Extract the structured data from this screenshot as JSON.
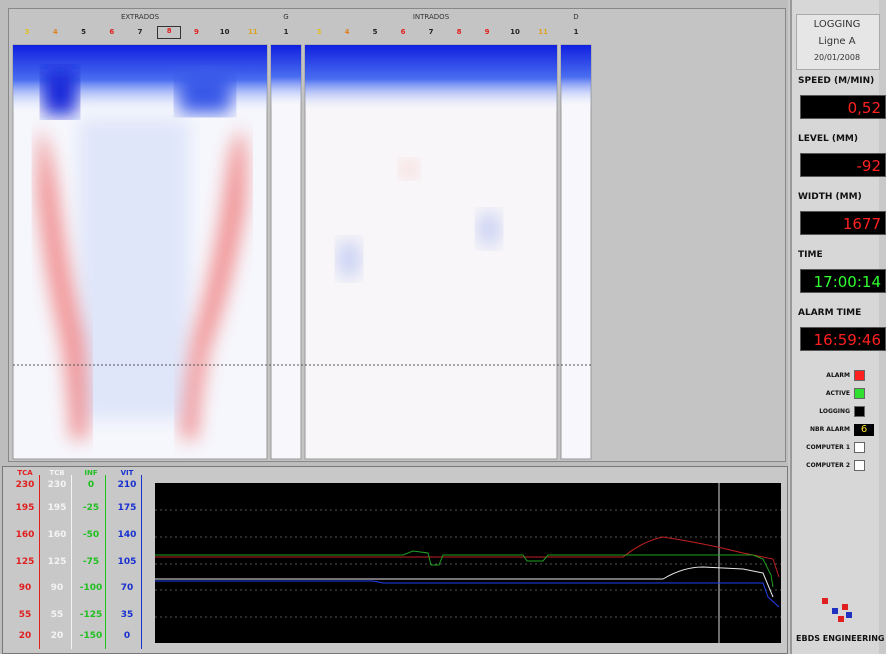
{
  "heatmap": {
    "sections": [
      {
        "title": "EXTRADOS",
        "columns": [
          "3",
          "4",
          "5",
          "6",
          "7",
          "8",
          "9",
          "10",
          "11"
        ]
      },
      {
        "title": "G",
        "columns": [
          "1"
        ]
      },
      {
        "title": "INTRADOS",
        "columns": [
          "3",
          "4",
          "5",
          "6",
          "7",
          "8",
          "9",
          "10",
          "11"
        ]
      },
      {
        "title": "D",
        "columns": [
          "1"
        ]
      }
    ]
  },
  "trend": {
    "axes": [
      {
        "name": "TCA",
        "color": "#e02020",
        "ticks": [
          230,
          195,
          160,
          125,
          90,
          55,
          20
        ]
      },
      {
        "name": "TCB",
        "color": "#f4f4f4",
        "ticks": [
          230,
          195,
          160,
          125,
          90,
          55,
          20
        ]
      },
      {
        "name": "INF",
        "color": "#20c020",
        "ticks": [
          0,
          -25,
          -50,
          -75,
          -100,
          -125,
          -150
        ]
      },
      {
        "name": "VIT",
        "color": "#1830d0",
        "ticks": [
          210,
          175,
          140,
          105,
          70,
          35,
          0
        ]
      }
    ]
  },
  "side": {
    "header": [
      "LOGGING",
      "Ligne A",
      "20/01/2008"
    ],
    "readouts": [
      {
        "label": "SPEED (M/MIN)",
        "value": "0,52",
        "color": "#ff2020"
      },
      {
        "label": "LEVEL (MM)",
        "value": -92,
        "color": "#ff2020"
      },
      {
        "label": "WIDTH (MM)",
        "value": 1677,
        "color": "#ff2020"
      },
      {
        "label": "TIME",
        "value": "17:00:14",
        "color": "#30ff30"
      },
      {
        "label": "ALARM TIME",
        "value": "16:59:46",
        "color": "#ff2020"
      }
    ],
    "status": [
      {
        "label": "ALARM",
        "color": "#ff2020"
      },
      {
        "label": "ACTIVE",
        "color": "#30e030"
      },
      {
        "label": "LOGGING",
        "color": "#000000"
      },
      {
        "label": "NBR ALARM",
        "value": 6
      },
      {
        "label": "COMPUTER 1",
        "color": "#ffffff"
      },
      {
        "label": "COMPUTER 2",
        "color": "#ffffff"
      }
    ],
    "brand": "EBDS ENGINEERING"
  }
}
